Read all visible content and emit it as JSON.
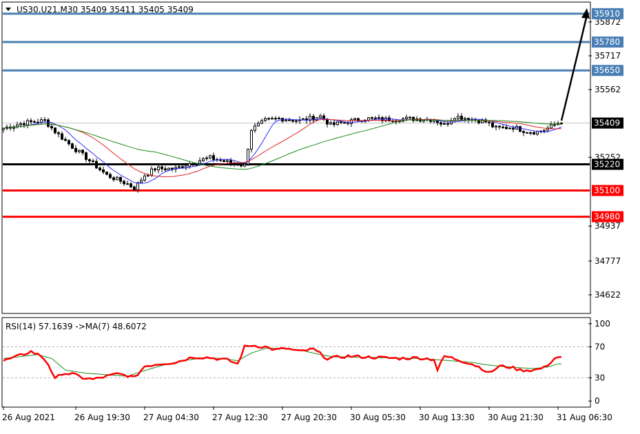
{
  "header": {
    "symbol_line": "US30.U21,M30  35409 35411 35405 35409",
    "dropdown_icon": "triangle-down-icon"
  },
  "colors": {
    "background": "#ffffff",
    "frame": "#000000",
    "candle": "#000000",
    "ma_fast": "#2a2aff",
    "ma_mid": "#e02020",
    "ma_slow": "#1a8a1a",
    "blue_level": "#4a7fb5",
    "red_level": "#ff0000",
    "support_level": "#000000",
    "rsi_line": "#ff0000",
    "rsi_ma": "#1a8a1a",
    "current_price_line": "#c0c0c0"
  },
  "chart_data": [
    {
      "type": "candlestick",
      "panel": "main",
      "ylim": [
        34540,
        35960
      ],
      "y_ticks": [
        "35872",
        "35717",
        "35562",
        "35252",
        "34937",
        "34777",
        "34622"
      ],
      "y_tick_values": [
        35872,
        35717,
        35562,
        35252,
        34937,
        34777,
        34622
      ],
      "x_labels": [
        "26 Aug 2021",
        "26 Aug 19:30",
        "27 Aug 04:30",
        "27 Aug 12:30",
        "27 Aug 20:30",
        "30 Aug 05:30",
        "30 Aug 13:30",
        "30 Aug 21:30",
        "31 Aug 06:30"
      ],
      "x_label_bars": [
        0,
        21,
        41,
        61,
        81,
        101,
        121,
        141,
        161
      ],
      "num_bars": 163,
      "close_anchors": [
        [
          0,
          35385
        ],
        [
          6,
          35410
        ],
        [
          12,
          35420
        ],
        [
          15,
          35370
        ],
        [
          20,
          35300
        ],
        [
          24,
          35250
        ],
        [
          30,
          35170
        ],
        [
          36,
          35130
        ],
        [
          38,
          35110
        ],
        [
          41,
          35170
        ],
        [
          44,
          35200
        ],
        [
          50,
          35200
        ],
        [
          55,
          35230
        ],
        [
          60,
          35250
        ],
        [
          65,
          35230
        ],
        [
          70,
          35215
        ],
        [
          72,
          35380
        ],
        [
          76,
          35420
        ],
        [
          80,
          35430
        ],
        [
          86,
          35420
        ],
        [
          92,
          35440
        ],
        [
          95,
          35400
        ],
        [
          100,
          35415
        ],
        [
          105,
          35430
        ],
        [
          110,
          35425
        ],
        [
          115,
          35428
        ],
        [
          120,
          35428
        ],
        [
          125,
          35425
        ],
        [
          128,
          35400
        ],
        [
          131,
          35440
        ],
        [
          135,
          35430
        ],
        [
          140,
          35415
        ],
        [
          143,
          35385
        ],
        [
          148,
          35390
        ],
        [
          152,
          35370
        ],
        [
          155,
          35368
        ],
        [
          158,
          35385
        ],
        [
          161,
          35409
        ]
      ],
      "current_price": 35409,
      "levels": [
        {
          "value": 35910,
          "label": "35910",
          "color": "blue"
        },
        {
          "value": 35780,
          "label": "35780",
          "color": "blue"
        },
        {
          "value": 35650,
          "label": "35650",
          "color": "blue"
        },
        {
          "value": 35220,
          "label": "35220",
          "color": "black"
        },
        {
          "value": 35100,
          "label": "35100",
          "color": "red"
        },
        {
          "value": 34980,
          "label": "34980",
          "color": "red"
        }
      ],
      "current_price_label": "35409",
      "moving_averages": [
        {
          "period": 8,
          "color": "blue"
        },
        {
          "period": 20,
          "color": "red"
        },
        {
          "period": 45,
          "color": "green"
        }
      ],
      "arrow": {
        "from_bar": 162,
        "from_price": 35420,
        "to_price": 35935
      }
    },
    {
      "type": "line",
      "panel": "rsi",
      "title": "RSI(14) 57.1639  ->MA(7) 48.6072",
      "ylim": [
        -7,
        107
      ],
      "y_ticks": [
        "100",
        "70",
        "30",
        "0"
      ],
      "y_tick_values": [
        100,
        70,
        30,
        0
      ],
      "dashed_levels": [
        70,
        30
      ],
      "rsi_anchors": [
        [
          0,
          52
        ],
        [
          3,
          56
        ],
        [
          8,
          64
        ],
        [
          11,
          58
        ],
        [
          13,
          48
        ],
        [
          15,
          28
        ],
        [
          17,
          36
        ],
        [
          20,
          35
        ],
        [
          23,
          30
        ],
        [
          26,
          28
        ],
        [
          30,
          32
        ],
        [
          33,
          35
        ],
        [
          36,
          33
        ],
        [
          38,
          30
        ],
        [
          41,
          45
        ],
        [
          45,
          48
        ],
        [
          50,
          50
        ],
        [
          55,
          57
        ],
        [
          60,
          56
        ],
        [
          65,
          53
        ],
        [
          68,
          48
        ],
        [
          70,
          70
        ],
        [
          72,
          72
        ],
        [
          76,
          70
        ],
        [
          79,
          66
        ],
        [
          82,
          68
        ],
        [
          86,
          64
        ],
        [
          90,
          67
        ],
        [
          94,
          55
        ],
        [
          96,
          56
        ],
        [
          100,
          58
        ],
        [
          105,
          57
        ],
        [
          110,
          56
        ],
        [
          115,
          55
        ],
        [
          120,
          56
        ],
        [
          125,
          54
        ],
        [
          126,
          40
        ],
        [
          128,
          58
        ],
        [
          130,
          56
        ],
        [
          133,
          52
        ],
        [
          136,
          48
        ],
        [
          139,
          42
        ],
        [
          141,
          36
        ],
        [
          144,
          45
        ],
        [
          147,
          44
        ],
        [
          150,
          40
        ],
        [
          154,
          40
        ],
        [
          157,
          43
        ],
        [
          160,
          55
        ],
        [
          161,
          57
        ]
      ],
      "ma_anchors": [
        [
          0,
          55
        ],
        [
          10,
          60
        ],
        [
          14,
          55
        ],
        [
          18,
          40
        ],
        [
          24,
          36
        ],
        [
          30,
          34
        ],
        [
          36,
          32
        ],
        [
          40,
          38
        ],
        [
          46,
          46
        ],
        [
          52,
          52
        ],
        [
          58,
          56
        ],
        [
          64,
          55
        ],
        [
          68,
          52
        ],
        [
          72,
          62
        ],
        [
          76,
          68
        ],
        [
          80,
          68
        ],
        [
          86,
          66
        ],
        [
          92,
          60
        ],
        [
          96,
          57
        ],
        [
          100,
          57
        ],
        [
          110,
          56
        ],
        [
          120,
          55
        ],
        [
          124,
          54
        ],
        [
          130,
          52
        ],
        [
          136,
          50
        ],
        [
          140,
          47
        ],
        [
          144,
          45
        ],
        [
          150,
          43
        ],
        [
          154,
          42
        ],
        [
          158,
          44
        ],
        [
          161,
          48
        ]
      ]
    }
  ]
}
